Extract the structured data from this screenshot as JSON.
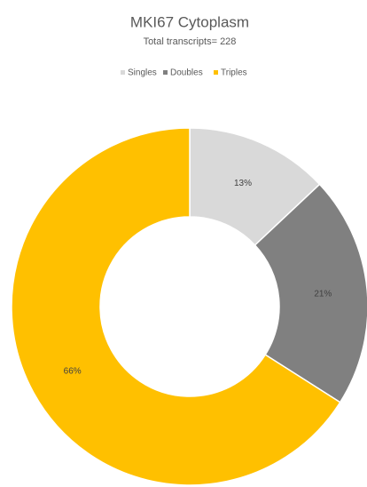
{
  "chart_data": {
    "type": "donut",
    "title": "MKI67 Cytoplasm",
    "subtitle": "Total transcripts= 228",
    "categories": [
      "Singles",
      "Doubles",
      "Triples"
    ],
    "values": [
      13,
      21,
      66
    ],
    "value_labels": [
      "13%",
      "21%",
      "66%"
    ],
    "colors": [
      "#d9d9d9",
      "#808080",
      "#ffc000"
    ],
    "legend": "top"
  }
}
